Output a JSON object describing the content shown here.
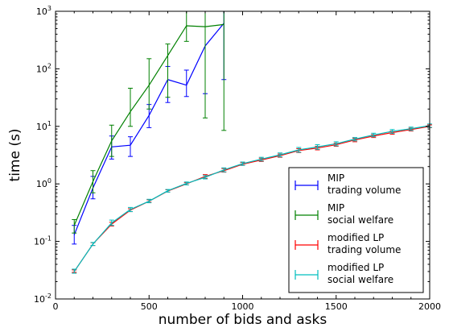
{
  "chart_data": {
    "type": "line",
    "xlabel": "number of bids and asks",
    "ylabel": "time (s)",
    "xlim": [
      0,
      2000
    ],
    "ylim": [
      0.01,
      1000
    ],
    "yscale": "log",
    "grid": false,
    "legend_position": "bottom-right",
    "x_ticks": [
      "0",
      "500",
      "1000",
      "1500",
      "2000"
    ],
    "y_ticks": [
      {
        "value": 0.01,
        "base": "10",
        "exp": "-2"
      },
      {
        "value": 0.1,
        "base": "10",
        "exp": "-1"
      },
      {
        "value": 1,
        "base": "10",
        "exp": "0"
      },
      {
        "value": 10,
        "base": "10",
        "exp": "1"
      },
      {
        "value": 100,
        "base": "10",
        "exp": "2"
      },
      {
        "value": 1000,
        "base": "10",
        "exp": "3"
      }
    ],
    "series": [
      {
        "name": "MIP trading volume",
        "legend": [
          "MIP",
          "trading volume"
        ],
        "color": "#0000ff",
        "x": [
          100,
          200,
          300,
          400,
          500,
          600,
          700,
          800,
          900
        ],
        "y": [
          0.13,
          0.85,
          4.4,
          4.7,
          15.5,
          65,
          52,
          250,
          620
        ],
        "err_low": [
          0.09,
          0.55,
          2.7,
          3.0,
          9.5,
          26,
          33,
          37,
          65
        ],
        "err_high": [
          0.19,
          1.35,
          6.8,
          6.6,
          24,
          110,
          95,
          1000,
          1000
        ]
      },
      {
        "name": "MIP social welfare",
        "legend": [
          "MIP",
          "social welfare"
        ],
        "color": "#008000",
        "x": [
          100,
          200,
          300,
          400,
          500,
          600,
          700,
          800,
          900
        ],
        "y": [
          0.19,
          1.1,
          5.6,
          18,
          52,
          170,
          560,
          540,
          590
        ],
        "err_low": [
          0.14,
          0.7,
          3.0,
          10,
          20,
          32,
          300,
          14,
          8.5
        ],
        "err_high": [
          0.24,
          1.7,
          10.5,
          46,
          150,
          270,
          1000,
          1000,
          1000
        ]
      },
      {
        "name": "modified LP trading volume",
        "legend": [
          "modified LP",
          "trading volume"
        ],
        "color": "#ff0000",
        "x": [
          100,
          200,
          300,
          400,
          500,
          600,
          700,
          800,
          900,
          1000,
          1100,
          1200,
          1300,
          1400,
          1500,
          1600,
          1700,
          1800,
          1900,
          2000
        ],
        "y": [
          0.03,
          0.09,
          0.2,
          0.35,
          0.5,
          0.75,
          1.0,
          1.35,
          1.7,
          2.2,
          2.6,
          3.1,
          3.8,
          4.2,
          4.8,
          5.8,
          6.8,
          7.8,
          8.8,
          10.0
        ],
        "err_low": [
          0.029,
          0.085,
          0.185,
          0.33,
          0.48,
          0.72,
          0.96,
          1.25,
          1.6,
          2.1,
          2.45,
          2.9,
          3.5,
          3.9,
          4.5,
          5.4,
          6.4,
          7.3,
          8.3,
          9.5
        ],
        "err_high": [
          0.032,
          0.095,
          0.215,
          0.37,
          0.53,
          0.79,
          1.05,
          1.45,
          1.85,
          2.35,
          2.8,
          3.3,
          4.1,
          4.5,
          5.1,
          6.2,
          7.2,
          8.3,
          9.3,
          10.6
        ]
      },
      {
        "name": "modified LP social welfare",
        "legend": [
          "modified LP",
          "social welfare"
        ],
        "color": "#00bfbf",
        "x": [
          100,
          200,
          300,
          400,
          500,
          600,
          700,
          800,
          900,
          1000,
          1100,
          1200,
          1300,
          1400,
          1500,
          1600,
          1700,
          1800,
          1900,
          2000
        ],
        "y": [
          0.03,
          0.09,
          0.21,
          0.36,
          0.5,
          0.76,
          1.02,
          1.3,
          1.75,
          2.25,
          2.7,
          3.2,
          3.9,
          4.4,
          5.0,
          6.0,
          7.1,
          8.2,
          9.1,
          10.3
        ],
        "err_low": [
          0.028,
          0.085,
          0.19,
          0.33,
          0.47,
          0.72,
          0.96,
          1.22,
          1.62,
          2.1,
          2.5,
          2.95,
          3.55,
          4.0,
          4.6,
          5.6,
          6.6,
          7.6,
          8.5,
          9.6
        ],
        "err_high": [
          0.033,
          0.096,
          0.235,
          0.39,
          0.54,
          0.8,
          1.08,
          1.4,
          1.9,
          2.4,
          2.9,
          3.45,
          4.3,
          4.8,
          5.4,
          6.4,
          7.6,
          8.8,
          9.7,
          11.0
        ]
      }
    ]
  }
}
